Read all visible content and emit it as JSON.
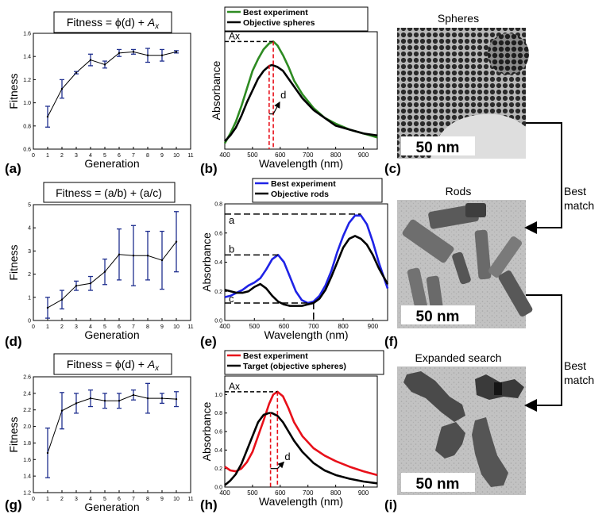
{
  "panel_letters": [
    "(a)",
    "(b)",
    "(c)",
    "(d)",
    "(e)",
    "(f)",
    "(g)",
    "(h)",
    "(i)"
  ],
  "tem": {
    "spheres_title": "Spheres",
    "rods_title": "Rods",
    "expanded_title": "Expanded search",
    "scale_bar": "50 nm",
    "best_match_1": "Best match",
    "best_match_2": "Best match"
  },
  "colors": {
    "green": "#2e8b22",
    "blue": "#1f23e6",
    "red": "#e8101a",
    "black": "#000000",
    "navy": "#1f2f8f"
  },
  "chart_data": [
    {
      "id": "a",
      "type": "line",
      "title": "Fitness = ϕ(d) + A_x",
      "xlabel": "Generation",
      "ylabel": "Fitness",
      "xlim": [
        0,
        11
      ],
      "ylim": [
        0.6,
        1.6
      ],
      "xticks": [
        0,
        1,
        2,
        3,
        4,
        5,
        6,
        7,
        8,
        9,
        10,
        11
      ],
      "yticks": [
        0.6,
        0.8,
        1.0,
        1.2,
        1.4,
        1.6
      ],
      "ytick_labels": [
        "0.6",
        "0.8",
        "1.0",
        "1.2",
        "1.4",
        "1.6"
      ],
      "x": [
        1,
        2,
        3,
        4,
        5,
        6,
        7,
        8,
        9,
        10
      ],
      "y": [
        0.88,
        1.12,
        1.26,
        1.37,
        1.33,
        1.43,
        1.44,
        1.41,
        1.41,
        1.44
      ],
      "err": [
        0.09,
        0.08,
        0.01,
        0.05,
        0.03,
        0.03,
        0.02,
        0.06,
        0.05,
        0.01
      ]
    },
    {
      "id": "b",
      "type": "line",
      "xlabel": "Wavelength (nm)",
      "ylabel": "Absorbance",
      "xlim": [
        400,
        950
      ],
      "xticks": [
        400,
        500,
        600,
        700,
        800,
        900
      ],
      "legend": [
        "Best experiment",
        "Objective spheres"
      ],
      "annotations": [
        "Ax",
        "d"
      ],
      "series": [
        {
          "name": "Best experiment",
          "color": "green",
          "x": [
            400,
            420,
            440,
            460,
            480,
            500,
            520,
            540,
            560,
            575,
            590,
            610,
            630,
            650,
            680,
            720,
            760,
            800,
            850,
            900,
            950
          ],
          "y": [
            0.03,
            0.08,
            0.14,
            0.22,
            0.31,
            0.4,
            0.46,
            0.51,
            0.54,
            0.55,
            0.53,
            0.48,
            0.42,
            0.35,
            0.28,
            0.21,
            0.16,
            0.13,
            0.1,
            0.08,
            0.06
          ]
        },
        {
          "name": "Objective spheres",
          "color": "black",
          "x": [
            400,
            420,
            440,
            460,
            480,
            500,
            520,
            540,
            560,
            570,
            590,
            610,
            630,
            650,
            680,
            720,
            760,
            800,
            850,
            900,
            950
          ],
          "y": [
            0.04,
            0.07,
            0.11,
            0.17,
            0.24,
            0.3,
            0.36,
            0.4,
            0.425,
            0.43,
            0.42,
            0.4,
            0.36,
            0.32,
            0.26,
            0.2,
            0.16,
            0.12,
            0.1,
            0.08,
            0.07
          ]
        }
      ]
    },
    {
      "id": "d",
      "type": "line",
      "title": "Fitness = (a/b) + (a/c)",
      "xlabel": "Generation",
      "ylabel": "Fitness",
      "xlim": [
        0,
        11
      ],
      "ylim": [
        0,
        5
      ],
      "xticks": [
        0,
        1,
        2,
        3,
        4,
        5,
        6,
        7,
        8,
        9,
        10,
        11
      ],
      "yticks": [
        0,
        1,
        2,
        3,
        4,
        5
      ],
      "ytick_labels": [
        "0",
        "1",
        "2",
        "3",
        "4",
        "5"
      ],
      "x": [
        1,
        2,
        3,
        4,
        5,
        6,
        7,
        8,
        9,
        10
      ],
      "y": [
        0.55,
        0.9,
        1.5,
        1.6,
        2.1,
        2.85,
        2.8,
        2.8,
        2.6,
        3.4
      ],
      "err": [
        0.45,
        0.4,
        0.2,
        0.3,
        0.55,
        1.1,
        1.3,
        1.05,
        1.25,
        1.3
      ]
    },
    {
      "id": "e",
      "type": "line",
      "xlabel": "Wavelength (nm)",
      "ylabel": "Absorbance",
      "xlim": [
        400,
        950
      ],
      "ylim": [
        0,
        0.8
      ],
      "xticks": [
        400,
        500,
        600,
        700,
        800,
        900
      ],
      "yticks": [
        0.0,
        0.2,
        0.4,
        0.6,
        0.8
      ],
      "ytick_labels": [
        "0.0",
        "0.2",
        "0.4",
        "0.6",
        "0.8"
      ],
      "legend": [
        "Best experiment",
        "Objective rods"
      ],
      "annotations": [
        "a",
        "b",
        "c"
      ],
      "series": [
        {
          "name": "Best experiment",
          "color": "blue",
          "x": [
            400,
            420,
            440,
            460,
            480,
            500,
            520,
            540,
            560,
            580,
            600,
            620,
            640,
            660,
            680,
            700,
            720,
            740,
            760,
            780,
            800,
            820,
            840,
            860,
            880,
            900,
            920,
            950
          ],
          "y": [
            0.16,
            0.17,
            0.19,
            0.21,
            0.24,
            0.26,
            0.29,
            0.35,
            0.42,
            0.45,
            0.4,
            0.3,
            0.2,
            0.14,
            0.12,
            0.13,
            0.17,
            0.24,
            0.34,
            0.47,
            0.58,
            0.67,
            0.72,
            0.72,
            0.66,
            0.54,
            0.4,
            0.22
          ]
        },
        {
          "name": "Objective rods",
          "color": "black",
          "x": [
            400,
            420,
            440,
            460,
            480,
            500,
            520,
            540,
            560,
            580,
            600,
            620,
            640,
            660,
            680,
            700,
            720,
            740,
            760,
            780,
            800,
            820,
            840,
            860,
            880,
            900,
            920,
            950
          ],
          "y": [
            0.21,
            0.2,
            0.19,
            0.19,
            0.2,
            0.23,
            0.25,
            0.22,
            0.17,
            0.13,
            0.11,
            0.1,
            0.1,
            0.1,
            0.11,
            0.12,
            0.15,
            0.21,
            0.3,
            0.4,
            0.5,
            0.56,
            0.58,
            0.56,
            0.52,
            0.45,
            0.36,
            0.25
          ]
        }
      ]
    },
    {
      "id": "g",
      "type": "line",
      "title": "Fitness = ϕ(d) + A_x",
      "xlabel": "Generation",
      "ylabel": "Fitness",
      "xlim": [
        0,
        11
      ],
      "ylim": [
        1.2,
        2.6
      ],
      "xticks": [
        0,
        1,
        2,
        3,
        4,
        5,
        6,
        7,
        8,
        9,
        10,
        11
      ],
      "yticks": [
        1.2,
        1.4,
        1.6,
        1.8,
        2.0,
        2.2,
        2.4,
        2.6
      ],
      "ytick_labels": [
        "1.2",
        "1.4",
        "1.6",
        "1.8",
        "2.0",
        "2.2",
        "2.4",
        "2.6"
      ],
      "x": [
        1,
        2,
        3,
        4,
        5,
        6,
        7,
        8,
        9,
        10
      ],
      "y": [
        1.68,
        2.19,
        2.28,
        2.34,
        2.31,
        2.31,
        2.38,
        2.34,
        2.34,
        2.33
      ],
      "err": [
        0.3,
        0.22,
        0.12,
        0.1,
        0.09,
        0.09,
        0.06,
        0.18,
        0.06,
        0.09
      ]
    },
    {
      "id": "h",
      "type": "line",
      "xlabel": "Wavelength (nm)",
      "ylabel": "Absorbance",
      "xlim": [
        400,
        950
      ],
      "ylim": [
        0,
        1.2
      ],
      "xticks": [
        400,
        500,
        600,
        700,
        800,
        900
      ],
      "yticks": [
        0.0,
        0.2,
        0.4,
        0.6,
        0.8,
        1.0
      ],
      "ytick_labels": [
        "0.0",
        "0.2",
        "0.4",
        "0.6",
        "0.8",
        "1.0"
      ],
      "legend": [
        "Best experiment",
        "Target (objective spheres)"
      ],
      "annotations": [
        "Ax",
        "d"
      ],
      "series": [
        {
          "name": "Best experiment",
          "color": "red",
          "x": [
            400,
            420,
            440,
            460,
            480,
            500,
            520,
            540,
            560,
            575,
            590,
            610,
            630,
            650,
            680,
            720,
            760,
            800,
            850,
            900,
            950
          ],
          "y": [
            0.22,
            0.18,
            0.17,
            0.2,
            0.27,
            0.38,
            0.55,
            0.72,
            0.9,
            1.0,
            1.03,
            0.98,
            0.85,
            0.7,
            0.55,
            0.42,
            0.34,
            0.28,
            0.22,
            0.17,
            0.13
          ]
        },
        {
          "name": "Target (objective spheres)",
          "color": "black",
          "x": [
            400,
            420,
            440,
            460,
            480,
            500,
            520,
            540,
            560,
            570,
            590,
            610,
            630,
            650,
            680,
            720,
            760,
            800,
            850,
            900,
            950
          ],
          "y": [
            0.02,
            0.07,
            0.14,
            0.25,
            0.4,
            0.55,
            0.7,
            0.78,
            0.8,
            0.8,
            0.77,
            0.7,
            0.6,
            0.5,
            0.38,
            0.26,
            0.18,
            0.13,
            0.09,
            0.06,
            0.04
          ]
        }
      ]
    }
  ]
}
